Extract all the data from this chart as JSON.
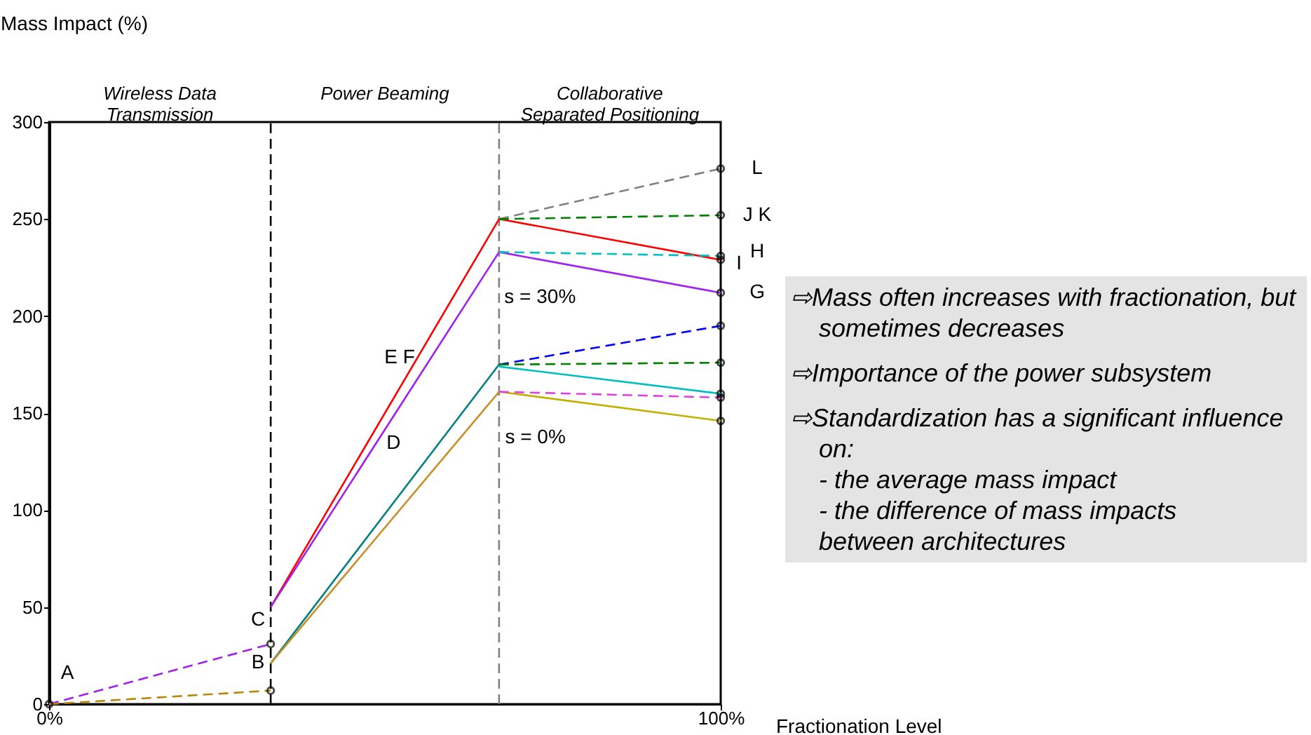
{
  "chart_data": {
    "type": "line",
    "xlabel": "Fractionation Level",
    "ylabel": "Mass Impact (%)",
    "xlim": [
      0,
      100
    ],
    "xticks": [
      {
        "value": 0,
        "label": "0%"
      },
      {
        "value": 100,
        "label": "100%"
      }
    ],
    "ylim": [
      0,
      300
    ],
    "yticks": [
      0,
      50,
      100,
      150,
      200,
      250,
      300
    ],
    "grid": false,
    "ref_lines": [
      {
        "axis": "x",
        "value": 33,
        "color": "#000000",
        "line_style": "dashed"
      },
      {
        "axis": "x",
        "value": 67,
        "color": "#808080",
        "line_style": "dashed"
      }
    ],
    "series": [
      {
        "color": "#a020f0",
        "line_style": "dashed",
        "x": [
          0,
          33
        ],
        "values": [
          0,
          31
        ]
      },
      {
        "color": "#b8860b",
        "line_style": "dashed",
        "x": [
          0,
          33
        ],
        "values": [
          0,
          7
        ]
      },
      {
        "color": "#ff0000",
        "line_style": "solid",
        "x": [
          33,
          67,
          100
        ],
        "values": [
          50,
          250,
          229
        ]
      },
      {
        "color": "#a020f0",
        "line_style": "solid",
        "x": [
          33,
          67,
          100
        ],
        "values": [
          50,
          233,
          212
        ]
      },
      {
        "color": "#008080",
        "line_style": "solid",
        "x": [
          33,
          67
        ],
        "values": [
          21,
          175
        ]
      },
      {
        "color": "#00bfbf",
        "line_style": "solid",
        "x": [
          67,
          100
        ],
        "values": [
          174,
          160
        ]
      },
      {
        "color": "#c8902a",
        "line_style": "solid",
        "x": [
          33,
          67
        ],
        "values": [
          21,
          161
        ]
      },
      {
        "color": "#c0b000",
        "line_style": "solid",
        "x": [
          67,
          100
        ],
        "values": [
          161,
          146
        ]
      },
      {
        "color": "#808080",
        "line_style": "dashed",
        "x": [
          67,
          100
        ],
        "values": [
          250,
          276
        ]
      },
      {
        "color": "#008000",
        "line_style": "dashed",
        "x": [
          67,
          100
        ],
        "values": [
          250,
          252
        ]
      },
      {
        "color": "#00c0c0",
        "line_style": "dashed",
        "x": [
          67,
          100
        ],
        "values": [
          233,
          231
        ]
      },
      {
        "color": "#0000ff",
        "line_style": "dashed",
        "x": [
          67,
          100
        ],
        "values": [
          175,
          195
        ]
      },
      {
        "color": "#008000",
        "line_style": "dashed",
        "x": [
          67,
          100
        ],
        "values": [
          175,
          176
        ]
      },
      {
        "color": "#e040e0",
        "line_style": "dashed",
        "x": [
          67,
          100
        ],
        "values": [
          161,
          158
        ]
      },
      {
        "type": "scatter",
        "color": "#000000",
        "marker": "circle",
        "x": [
          0,
          33,
          33,
          100,
          100,
          100,
          100,
          100,
          100,
          100,
          100,
          100,
          100
        ],
        "values": [
          0,
          31,
          7,
          276,
          252,
          231,
          229,
          212,
          195,
          176,
          160,
          158,
          146
        ]
      }
    ],
    "annotations": [
      "Wireless Data\nTransmission",
      "Power Beaming",
      "Collaborative\nSeparated Positioning",
      "E F",
      "D",
      "s = 30%",
      "s = 0%",
      "⇨Mass often increases with fractionation, but sometimes decreases",
      "⇨Importance of the power subsystem",
      "⇨Standardization has a significant influence on:\n- the average mass impact\n- the difference of mass impacts\n   between architectures",
      {
        "text": "A",
        "x": 0,
        "y": 0
      },
      {
        "text": "B",
        "x": 33,
        "y": 7
      },
      {
        "text": "C",
        "x": 33,
        "y": 31
      },
      {
        "text": "L",
        "x": 100,
        "y": 276
      },
      {
        "text": "J K",
        "x": 100,
        "y": 252
      },
      {
        "text": "H",
        "x": 100,
        "y": 231
      },
      {
        "text": "I",
        "x": 100,
        "y": 229
      },
      {
        "text": "G",
        "x": 100,
        "y": 212
      }
    ]
  }
}
